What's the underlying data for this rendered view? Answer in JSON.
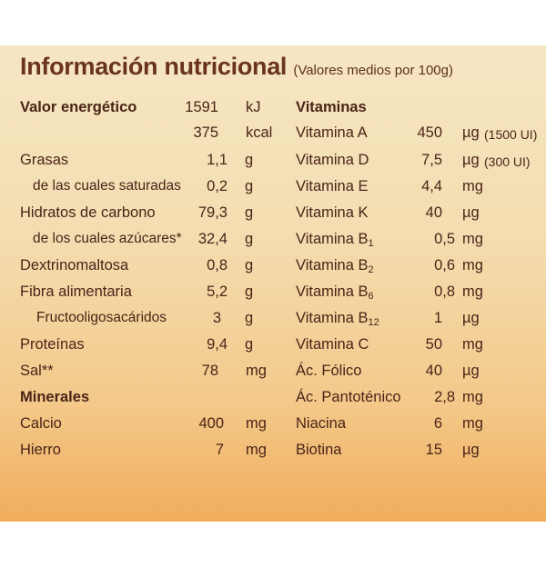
{
  "title": "Información nutricional",
  "subtitle": "(Valores medios por 100g)",
  "energy": {
    "label": "Valor energético",
    "kj_value": "1591",
    "kj_unit": "kJ",
    "kcal_value": "375",
    "kcal_unit": "kcal"
  },
  "nutrients": [
    {
      "label": "Grasas",
      "value": "1,1",
      "unit": "g"
    },
    {
      "label": "de las cuales saturadas",
      "value": "0,2",
      "unit": "g"
    },
    {
      "label": "Hidratos de carbono",
      "value": "79,3",
      "unit": "g"
    },
    {
      "label": "de los cuales azúcares*",
      "value": "32,4",
      "unit": "g"
    },
    {
      "label": "Dextrinomaltosa",
      "value": "0,8",
      "unit": "g"
    },
    {
      "label": "Fibra alimentaria",
      "value": "5,2",
      "unit": "g"
    },
    {
      "label": "Fructooligosacáridos",
      "value": "3",
      "unit": "g"
    },
    {
      "label": "Proteínas",
      "value": "9,4",
      "unit": "g"
    },
    {
      "label": "Sal**",
      "value": "78",
      "unit": "mg"
    }
  ],
  "minerals_heading": "Minerales",
  "minerals": [
    {
      "label": "Calcio",
      "value": "400",
      "unit": "mg"
    },
    {
      "label": "Hierro",
      "value": "7",
      "unit": "mg"
    }
  ],
  "vitamins_heading": "Vitaminas",
  "vitamins": [
    {
      "label": "Vitamina A",
      "sub": "",
      "value": "450",
      "unit": "µg",
      "extra": "(1500 UI)"
    },
    {
      "label": "Vitamina D",
      "sub": "",
      "value": "7,5",
      "unit": "µg",
      "extra": "(300 UI)"
    },
    {
      "label": "Vitamina E",
      "sub": "",
      "value": "4,4",
      "unit": "mg",
      "extra": ""
    },
    {
      "label": "Vitamina K",
      "sub": "",
      "value": "40",
      "unit": "µg",
      "extra": ""
    },
    {
      "label": "Vitamina B",
      "sub": "1",
      "value": "0,5",
      "unit": "mg",
      "extra": ""
    },
    {
      "label": "Vitamina B",
      "sub": "2",
      "value": "0,6",
      "unit": "mg",
      "extra": ""
    },
    {
      "label": "Vitamina B",
      "sub": "6",
      "value": "0,8",
      "unit": "mg",
      "extra": ""
    },
    {
      "label": "Vitamina B",
      "sub": "12",
      "value": "1",
      "unit": "µg",
      "extra": ""
    },
    {
      "label": "Vitamina C",
      "sub": "",
      "value": "50",
      "unit": "mg",
      "extra": ""
    },
    {
      "label": "Ác. Fólico",
      "sub": "",
      "value": "40",
      "unit": "µg",
      "extra": ""
    },
    {
      "label": "Ác. Pantoténico",
      "sub": "",
      "value": "2,8",
      "unit": "mg",
      "extra": ""
    },
    {
      "label": "Niacina",
      "sub": "",
      "value": "6",
      "unit": "mg",
      "extra": ""
    },
    {
      "label": "Biotina",
      "sub": "",
      "value": "15",
      "unit": "µg",
      "extra": ""
    }
  ]
}
